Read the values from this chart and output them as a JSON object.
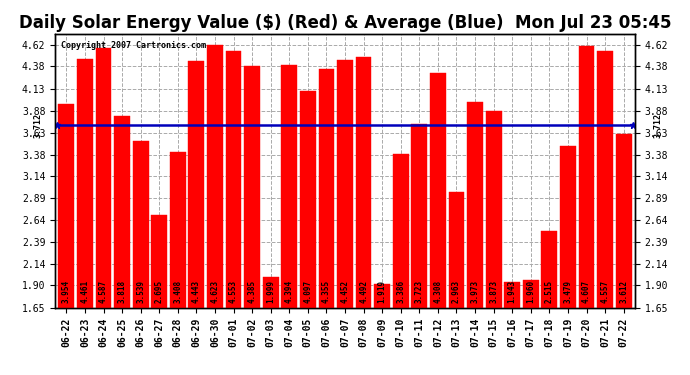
{
  "title": "Daily Solar Energy Value ($) (Red) & Average (Blue)  Mon Jul 23 05:45",
  "copyright": "Copyright 2007 Cartronics.com",
  "average": 3.712,
  "categories": [
    "06-22",
    "06-23",
    "06-24",
    "06-25",
    "06-26",
    "06-27",
    "06-28",
    "06-29",
    "06-30",
    "07-01",
    "07-02",
    "07-03",
    "07-04",
    "07-05",
    "07-06",
    "07-07",
    "07-08",
    "07-09",
    "07-10",
    "07-11",
    "07-12",
    "07-13",
    "07-14",
    "07-15",
    "07-16",
    "07-17",
    "07-18",
    "07-19",
    "07-20",
    "07-21",
    "07-22"
  ],
  "values": [
    3.954,
    4.461,
    4.587,
    3.818,
    3.539,
    2.695,
    3.408,
    4.443,
    4.623,
    4.553,
    4.385,
    1.999,
    4.394,
    4.097,
    4.355,
    4.452,
    4.492,
    1.919,
    3.386,
    3.723,
    4.308,
    2.963,
    3.973,
    3.873,
    1.943,
    1.96,
    2.515,
    3.479,
    4.607,
    4.557,
    3.612
  ],
  "bar_color": "#ff0000",
  "line_color": "#0000bb",
  "bg_color": "#ffffff",
  "plot_bg_color": "#ffffff",
  "grid_color": "#aaaaaa",
  "ylim": [
    1.65,
    4.75
  ],
  "ymin": 1.65,
  "yticks": [
    1.65,
    1.9,
    2.14,
    2.39,
    2.64,
    2.89,
    3.14,
    3.38,
    3.63,
    3.88,
    4.13,
    4.38,
    4.62
  ],
  "title_fontsize": 12,
  "label_fontsize": 5.5,
  "tick_fontsize": 7,
  "bar_width": 0.85
}
